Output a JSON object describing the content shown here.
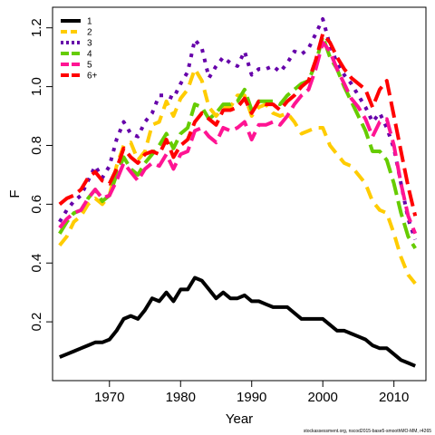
{
  "chart_data": {
    "type": "line",
    "xlabel": "Year",
    "ylabel": "F",
    "xlim": [
      1962,
      2014.5
    ],
    "ylim": [
      0.0,
      1.27
    ],
    "xticks": [
      1970,
      1980,
      1990,
      2000,
      2010
    ],
    "yticks": [
      0.2,
      0.4,
      0.6,
      0.8,
      1.0,
      1.2
    ],
    "legend_position": "top-left",
    "credit": "stockassessment.org, nscod2015-base5-smoothMO-MM, r4265",
    "series": [
      {
        "name": "1",
        "color": "#000000",
        "dash": "solid",
        "x": [
          1963,
          1964,
          1965,
          1966,
          1967,
          1968,
          1969,
          1970,
          1971,
          1972,
          1973,
          1974,
          1975,
          1976,
          1977,
          1978,
          1979,
          1980,
          1981,
          1982,
          1983,
          1984,
          1985,
          1986,
          1987,
          1988,
          1989,
          1990,
          1991,
          1992,
          1993,
          1994,
          1995,
          1996,
          1997,
          1998,
          1999,
          2000,
          2001,
          2002,
          2003,
          2004,
          2005,
          2006,
          2007,
          2008,
          2009,
          2010,
          2011,
          2012,
          2013
        ],
        "y": [
          0.08,
          0.09,
          0.1,
          0.11,
          0.12,
          0.13,
          0.13,
          0.14,
          0.17,
          0.21,
          0.22,
          0.21,
          0.24,
          0.28,
          0.27,
          0.3,
          0.27,
          0.31,
          0.31,
          0.35,
          0.34,
          0.31,
          0.28,
          0.3,
          0.28,
          0.28,
          0.29,
          0.27,
          0.27,
          0.26,
          0.25,
          0.25,
          0.25,
          0.23,
          0.21,
          0.21,
          0.21,
          0.21,
          0.19,
          0.17,
          0.17,
          0.16,
          0.15,
          0.14,
          0.12,
          0.11,
          0.11,
          0.09,
          0.07,
          0.06,
          0.05
        ]
      },
      {
        "name": "2",
        "color": "#ffcc00",
        "dash": "dash",
        "x": [
          1963,
          1964,
          1965,
          1966,
          1967,
          1968,
          1969,
          1970,
          1971,
          1972,
          1973,
          1974,
          1975,
          1976,
          1977,
          1978,
          1979,
          1980,
          1981,
          1982,
          1983,
          1984,
          1985,
          1986,
          1987,
          1988,
          1989,
          1990,
          1991,
          1992,
          1993,
          1994,
          1995,
          1996,
          1997,
          1998,
          1999,
          2000,
          2001,
          2002,
          2003,
          2004,
          2005,
          2006,
          2007,
          2008,
          2009,
          2010,
          2011,
          2012,
          2013
        ],
        "y": [
          0.46,
          0.49,
          0.54,
          0.56,
          0.6,
          0.62,
          0.6,
          0.63,
          0.73,
          0.8,
          0.81,
          0.75,
          0.78,
          0.87,
          0.88,
          0.95,
          0.9,
          0.96,
          0.99,
          1.06,
          1.02,
          0.93,
          0.9,
          0.93,
          0.93,
          0.97,
          0.97,
          0.9,
          0.93,
          0.94,
          0.91,
          0.9,
          0.91,
          0.88,
          0.84,
          0.85,
          0.86,
          0.86,
          0.8,
          0.77,
          0.74,
          0.73,
          0.7,
          0.67,
          0.61,
          0.58,
          0.57,
          0.5,
          0.42,
          0.36,
          0.33
        ]
      },
      {
        "name": "3",
        "color": "#6600aa",
        "dash": "dot",
        "x": [
          1963,
          1964,
          1965,
          1966,
          1967,
          1968,
          1969,
          1970,
          1971,
          1972,
          1973,
          1974,
          1975,
          1976,
          1977,
          1978,
          1979,
          1980,
          1981,
          1982,
          1983,
          1984,
          1985,
          1986,
          1987,
          1988,
          1989,
          1990,
          1991,
          1992,
          1993,
          1994,
          1995,
          1996,
          1997,
          1998,
          1999,
          2000,
          2001,
          2002,
          2003,
          2004,
          2005,
          2006,
          2007,
          2008,
          2009,
          2010,
          2011,
          2012,
          2013
        ],
        "y": [
          0.54,
          0.58,
          0.61,
          0.63,
          0.68,
          0.73,
          0.69,
          0.73,
          0.82,
          0.88,
          0.84,
          0.83,
          0.88,
          0.91,
          0.97,
          0.97,
          0.96,
          1.01,
          1.05,
          1.16,
          1.13,
          1.03,
          1.07,
          1.1,
          1.08,
          1.07,
          1.12,
          1.04,
          1.06,
          1.06,
          1.07,
          1.05,
          1.08,
          1.12,
          1.11,
          1.13,
          1.18,
          1.23,
          1.14,
          1.08,
          1.04,
          1.01,
          0.97,
          0.93,
          0.88,
          0.91,
          0.86,
          0.79,
          0.67,
          0.55,
          0.48
        ]
      },
      {
        "name": "4",
        "color": "#66cc00",
        "dash": "longdash",
        "x": [
          1963,
          1964,
          1965,
          1966,
          1967,
          1968,
          1969,
          1970,
          1971,
          1972,
          1973,
          1974,
          1975,
          1976,
          1977,
          1978,
          1979,
          1980,
          1981,
          1982,
          1983,
          1984,
          1985,
          1986,
          1987,
          1988,
          1989,
          1990,
          1991,
          1992,
          1993,
          1994,
          1995,
          1996,
          1997,
          1998,
          1999,
          2000,
          2001,
          2002,
          2003,
          2004,
          2005,
          2006,
          2007,
          2008,
          2009,
          2010,
          2011,
          2012,
          2013
        ],
        "y": [
          0.5,
          0.54,
          0.57,
          0.58,
          0.62,
          0.65,
          0.61,
          0.63,
          0.7,
          0.76,
          0.72,
          0.7,
          0.74,
          0.77,
          0.8,
          0.84,
          0.79,
          0.84,
          0.86,
          0.94,
          0.93,
          0.89,
          0.91,
          0.94,
          0.94,
          0.95,
          0.99,
          0.92,
          0.95,
          0.95,
          0.95,
          0.94,
          0.97,
          0.99,
          1.01,
          1.02,
          1.08,
          1.17,
          1.1,
          1.06,
          1.0,
          0.95,
          0.9,
          0.85,
          0.78,
          0.78,
          0.75,
          0.67,
          0.57,
          0.49,
          0.45
        ]
      },
      {
        "name": "5",
        "color": "#ff1493",
        "dash": "longdash",
        "x": [
          1963,
          1964,
          1965,
          1966,
          1967,
          1968,
          1969,
          1970,
          1971,
          1972,
          1973,
          1974,
          1975,
          1976,
          1977,
          1978,
          1979,
          1980,
          1981,
          1982,
          1983,
          1984,
          1985,
          1986,
          1987,
          1988,
          1989,
          1990,
          1991,
          1992,
          1993,
          1994,
          1995,
          1996,
          1997,
          1998,
          1999,
          2000,
          2001,
          2002,
          2003,
          2004,
          2005,
          2006,
          2007,
          2008,
          2009,
          2010,
          2011,
          2012,
          2013
        ],
        "y": [
          0.52,
          0.55,
          0.57,
          0.58,
          0.62,
          0.65,
          0.62,
          0.63,
          0.68,
          0.74,
          0.71,
          0.68,
          0.72,
          0.74,
          0.73,
          0.77,
          0.72,
          0.77,
          0.78,
          0.85,
          0.86,
          0.83,
          0.81,
          0.86,
          0.85,
          0.86,
          0.88,
          0.82,
          0.87,
          0.87,
          0.88,
          0.87,
          0.9,
          0.94,
          0.97,
          0.99,
          1.06,
          1.15,
          1.12,
          1.06,
          1.01,
          0.96,
          0.93,
          0.89,
          0.83,
          0.88,
          0.89,
          0.8,
          0.67,
          0.56,
          0.5
        ]
      },
      {
        "name": "6+",
        "color": "#ff0000",
        "dash": "longdash",
        "x": [
          1963,
          1964,
          1965,
          1966,
          1967,
          1968,
          1969,
          1970,
          1971,
          1972,
          1973,
          1974,
          1975,
          1976,
          1977,
          1978,
          1979,
          1980,
          1981,
          1982,
          1983,
          1984,
          1985,
          1986,
          1987,
          1988,
          1989,
          1990,
          1991,
          1992,
          1993,
          1994,
          1995,
          1996,
          1997,
          1998,
          1999,
          2000,
          2001,
          2002,
          2003,
          2004,
          2005,
          2006,
          2007,
          2008,
          2009,
          2010,
          2011,
          2012,
          2013
        ],
        "y": [
          0.6,
          0.62,
          0.63,
          0.65,
          0.69,
          0.71,
          0.68,
          0.67,
          0.72,
          0.79,
          0.76,
          0.74,
          0.77,
          0.78,
          0.77,
          0.82,
          0.76,
          0.8,
          0.82,
          0.88,
          0.91,
          0.89,
          0.87,
          0.92,
          0.92,
          0.93,
          0.96,
          0.91,
          0.95,
          0.94,
          0.94,
          0.92,
          0.95,
          0.97,
          1.0,
          1.02,
          1.09,
          1.18,
          1.15,
          1.1,
          1.06,
          1.03,
          1.01,
          0.99,
          0.93,
          0.99,
          1.02,
          0.9,
          0.78,
          0.66,
          0.56
        ]
      }
    ]
  }
}
